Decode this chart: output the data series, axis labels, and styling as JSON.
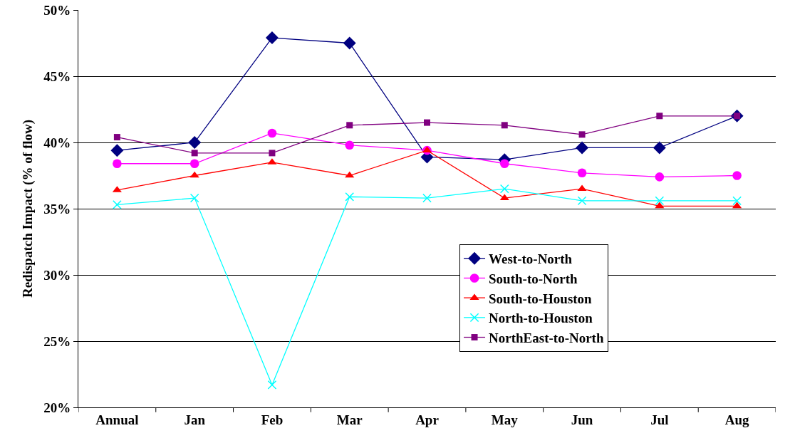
{
  "chart_data": {
    "type": "line",
    "ylabel": "Redispatch Impact (% of flow)",
    "categories": [
      "Annual",
      "Jan",
      "Feb",
      "Mar",
      "Apr",
      "May",
      "Jun",
      "Jul",
      "Aug"
    ],
    "series": [
      {
        "name": "West-to-North",
        "color": "#000080",
        "marker": "diamond",
        "values": [
          39.4,
          40.0,
          47.9,
          47.5,
          38.9,
          38.7,
          39.6,
          39.6,
          42.0
        ]
      },
      {
        "name": "South-to-North",
        "color": "#ff00ff",
        "marker": "circle",
        "values": [
          38.4,
          38.4,
          40.7,
          39.8,
          39.4,
          38.4,
          37.7,
          37.4,
          37.5
        ]
      },
      {
        "name": "South-to-Houston",
        "color": "#ff0000",
        "marker": "triangle",
        "values": [
          36.4,
          37.5,
          38.5,
          37.5,
          39.4,
          35.8,
          36.5,
          35.2,
          35.2
        ]
      },
      {
        "name": "North-to-Houston",
        "color": "#00ffff",
        "marker": "cross",
        "values": [
          35.3,
          35.8,
          21.7,
          35.9,
          35.8,
          36.5,
          35.6,
          35.6,
          35.6
        ]
      },
      {
        "name": "NorthEast-to-North",
        "color": "#800080",
        "marker": "square",
        "values": [
          40.4,
          39.2,
          39.2,
          41.3,
          41.5,
          41.3,
          40.6,
          42.0,
          42.0
        ]
      }
    ],
    "ylim": [
      20,
      50
    ],
    "yticks": [
      {
        "value": 20,
        "label": "20%"
      },
      {
        "value": 25,
        "label": "25%"
      },
      {
        "value": 30,
        "label": "30%"
      },
      {
        "value": 35,
        "label": "35%"
      },
      {
        "value": 40,
        "label": "40%"
      },
      {
        "value": 45,
        "label": "45%"
      },
      {
        "value": 50,
        "label": "50%"
      }
    ],
    "grid": "y",
    "legend": "bottom right",
    "line_style": "solid"
  }
}
